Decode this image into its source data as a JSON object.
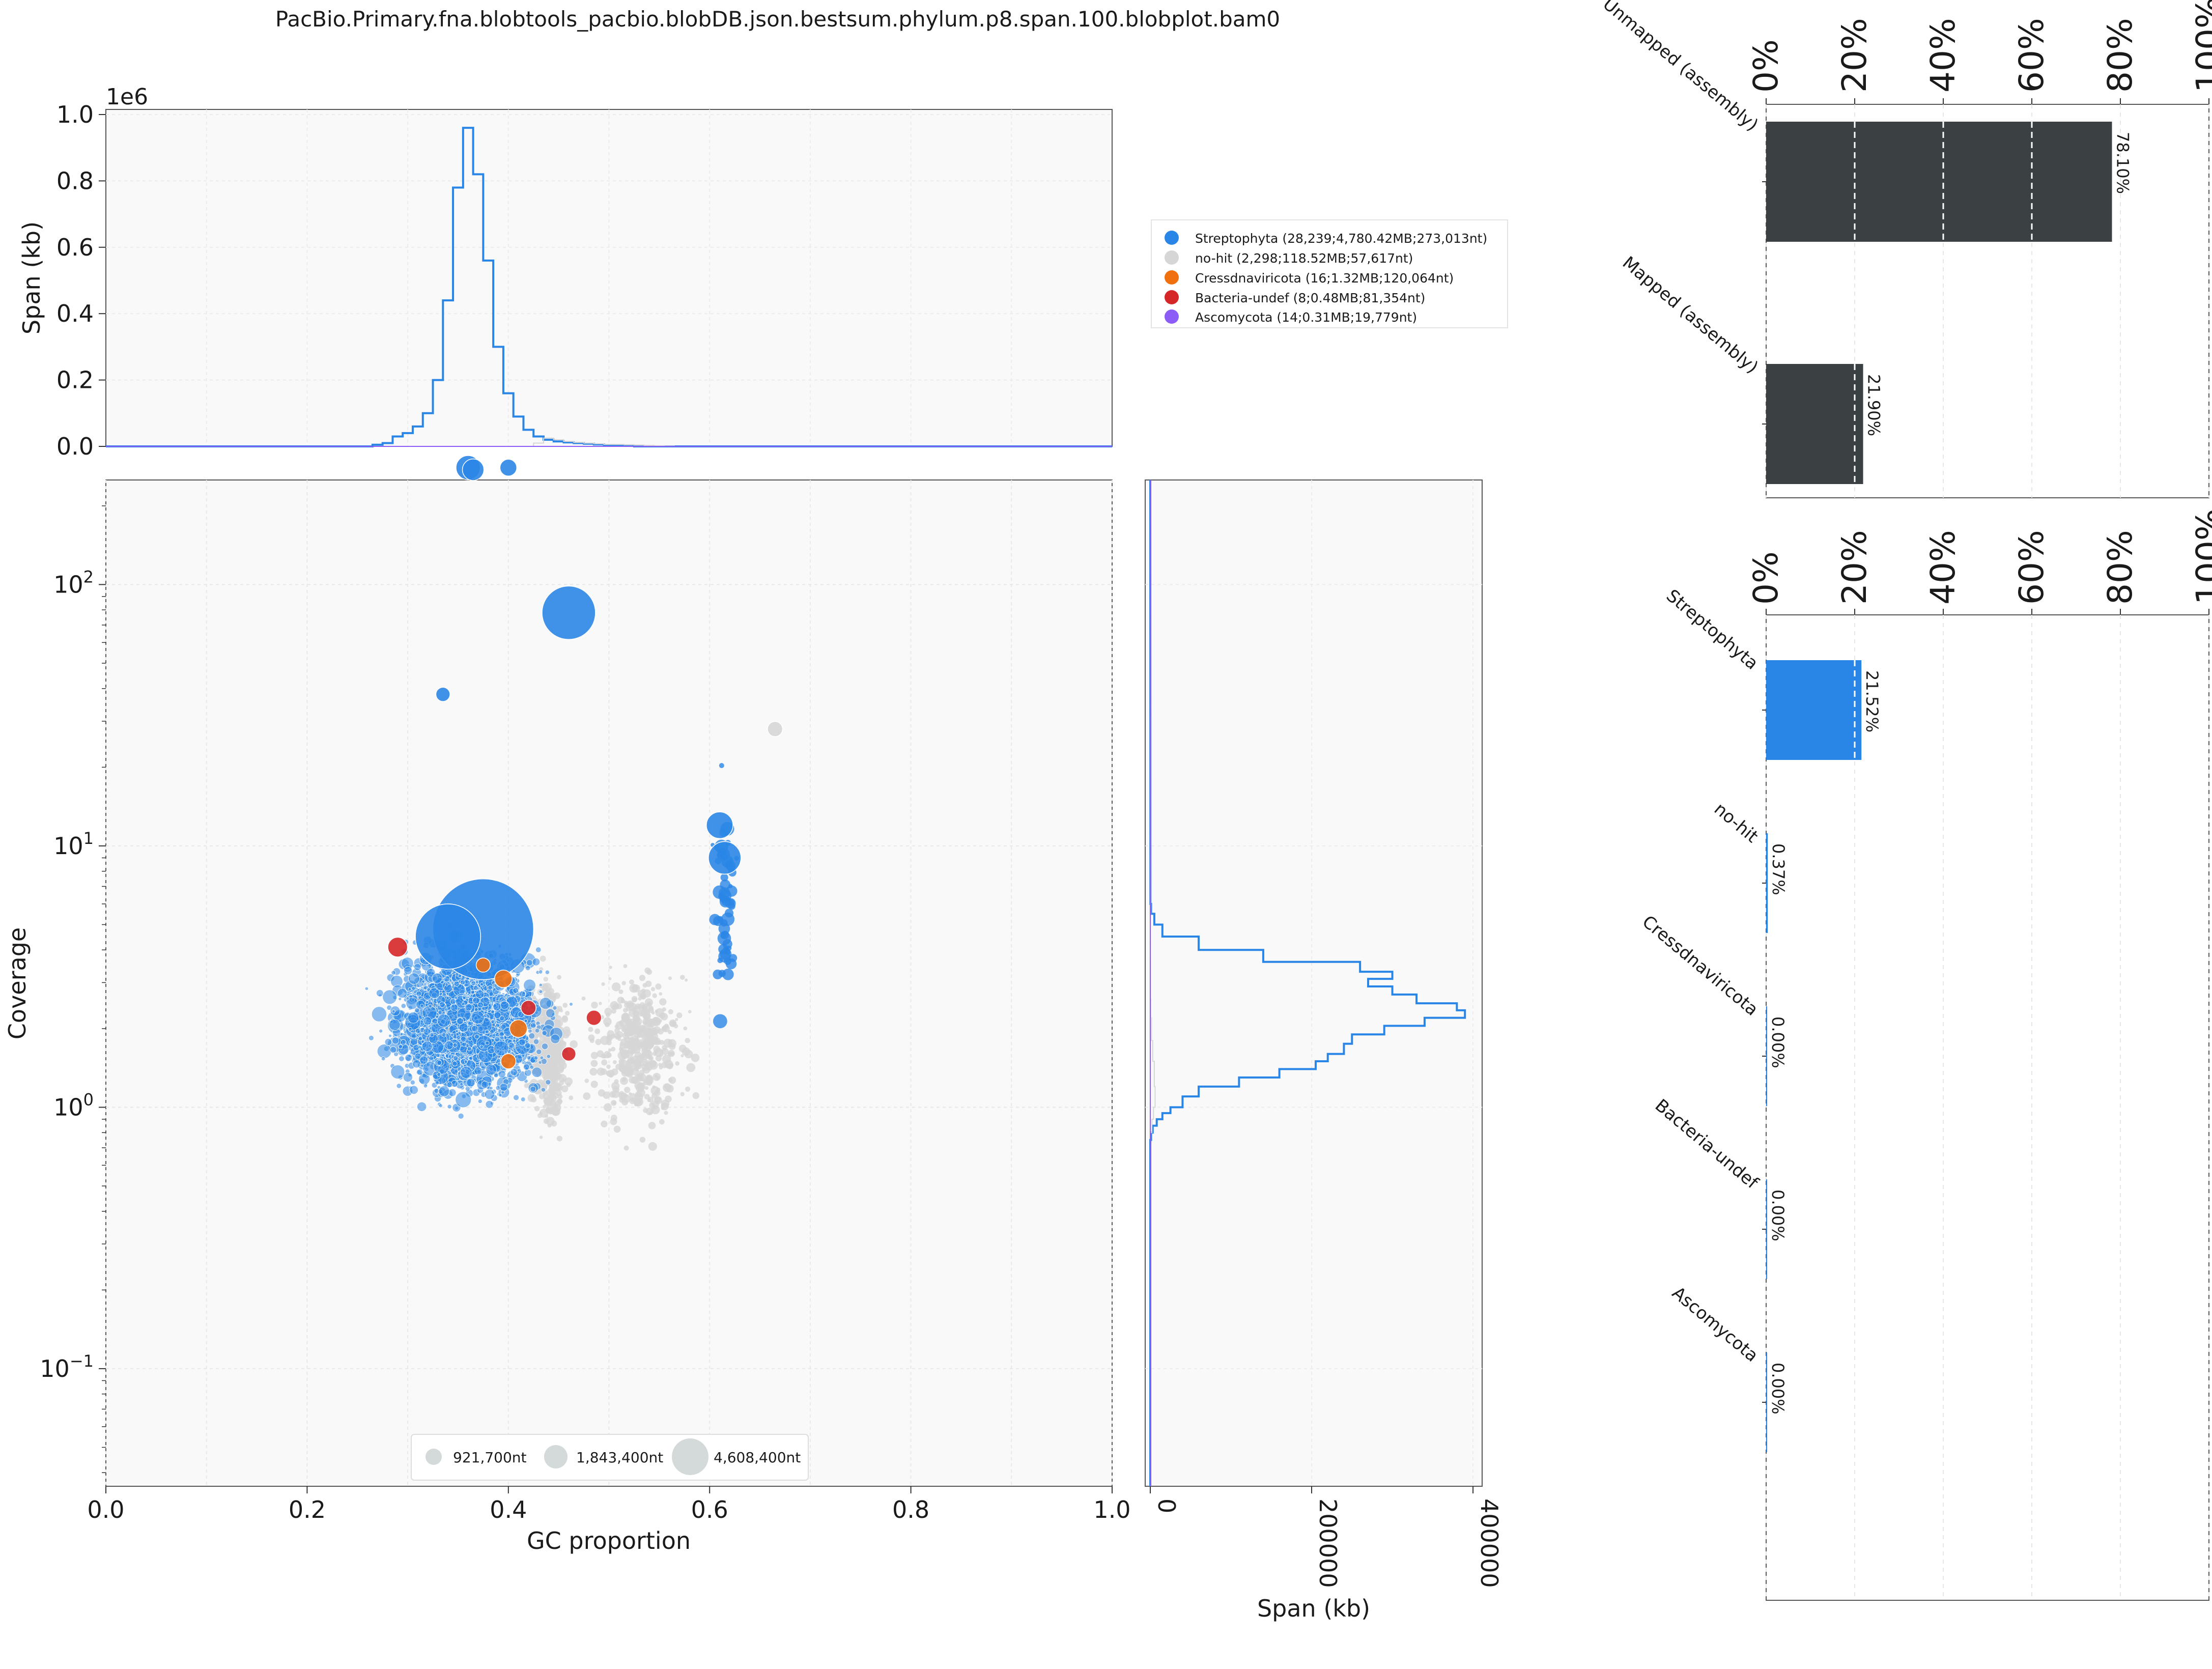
{
  "title": "PacBio.Primary.fna.blobtools_pacbio.blobDB.json.bestsum.phylum.p8.span.100.blobplot.bam0",
  "colors": {
    "Streptophyta": "#2a86e6",
    "no-hit": "#d6d6d6",
    "Cressdnaviricota": "#f07010",
    "Bacteria-undef": "#d62728",
    "Ascomycota": "#8b5cf6",
    "mapping_bar": "#3b4043"
  },
  "chart_data": [
    {
      "id": "top_histogram",
      "type": "line",
      "ylabel": "Span (kb)",
      "y_offset_label": "1e6",
      "xlim": [
        0,
        1
      ],
      "ylim": [
        0,
        1.0
      ],
      "yticks": [
        "0.0",
        "0.2",
        "0.4",
        "0.6",
        "0.8",
        "1.0"
      ],
      "series": [
        {
          "name": "Streptophyta",
          "x": [
            0.27,
            0.28,
            0.29,
            0.3,
            0.31,
            0.32,
            0.33,
            0.34,
            0.35,
            0.36,
            0.37,
            0.38,
            0.39,
            0.4,
            0.41,
            0.42,
            0.43,
            0.44,
            0.45,
            0.46,
            0.47,
            0.48,
            0.49,
            0.5,
            0.51,
            0.52
          ],
          "values": [
            0.005,
            0.01,
            0.03,
            0.04,
            0.06,
            0.1,
            0.2,
            0.44,
            0.78,
            0.96,
            0.82,
            0.56,
            0.3,
            0.16,
            0.09,
            0.05,
            0.03,
            0.02,
            0.015,
            0.012,
            0.01,
            0.008,
            0.006,
            0.004,
            0.003,
            0.002
          ]
        },
        {
          "name": "no-hit",
          "x": [
            0.43,
            0.44,
            0.45,
            0.46,
            0.47,
            0.48,
            0.49,
            0.5,
            0.51,
            0.52,
            0.53,
            0.54,
            0.55,
            0.56
          ],
          "values": [
            0.01,
            0.025,
            0.02,
            0.015,
            0.012,
            0.01,
            0.008,
            0.006,
            0.006,
            0.005,
            0.004,
            0.003,
            0.002,
            0.001
          ]
        }
      ]
    },
    {
      "id": "blob_scatter",
      "type": "scatter",
      "xlabel": "GC proportion",
      "ylabel": "Coverage",
      "xlim": [
        0.0,
        1.0
      ],
      "ylim_log10": [
        -1.45,
        2.4
      ],
      "xticks": [
        "0.0",
        "0.2",
        "0.4",
        "0.6",
        "0.8",
        "1.0"
      ],
      "yticks": [
        {
          "base": "10",
          "exp": "−1",
          "value": 0.1
        },
        {
          "base": "10",
          "exp": "0",
          "value": 1
        },
        {
          "base": "10",
          "exp": "1",
          "value": 10
        },
        {
          "base": "10",
          "exp": "2",
          "value": 100
        }
      ],
      "highlighted_points": [
        {
          "series": "Streptophyta",
          "x": 0.46,
          "y": 78,
          "span_nt": 1200000
        },
        {
          "series": "Streptophyta",
          "x": 0.36,
          "y": 280,
          "span_nt": 200000
        },
        {
          "series": "Streptophyta",
          "x": 0.365,
          "y": 275,
          "span_nt": 150000
        },
        {
          "series": "Streptophyta",
          "x": 0.4,
          "y": 280,
          "span_nt": 80000
        },
        {
          "series": "Streptophyta",
          "x": 0.335,
          "y": 38,
          "span_nt": 50000
        },
        {
          "series": "Streptophyta",
          "x": 0.375,
          "y": 4.8,
          "span_nt": 4608400
        },
        {
          "series": "Streptophyta",
          "x": 0.34,
          "y": 4.5,
          "span_nt": 1843400
        },
        {
          "series": "Streptophyta",
          "x": 0.615,
          "y": 9,
          "span_nt": 400000
        },
        {
          "series": "Streptophyta",
          "x": 0.61,
          "y": 12,
          "span_nt": 250000
        },
        {
          "series": "no-hit",
          "x": 0.665,
          "y": 28,
          "span_nt": 60000
        },
        {
          "series": "Cressdnaviricota",
          "x": 0.395,
          "y": 3.1,
          "span_nt": 90000
        },
        {
          "series": "Cressdnaviricota",
          "x": 0.41,
          "y": 2.0,
          "span_nt": 90000
        },
        {
          "series": "Cressdnaviricota",
          "x": 0.4,
          "y": 1.5,
          "span_nt": 60000
        },
        {
          "series": "Cressdnaviricota",
          "x": 0.375,
          "y": 3.5,
          "span_nt": 50000
        },
        {
          "series": "Bacteria-undef",
          "x": 0.29,
          "y": 4.1,
          "span_nt": 120000
        },
        {
          "series": "Bacteria-undef",
          "x": 0.42,
          "y": 2.4,
          "span_nt": 60000
        },
        {
          "series": "Bacteria-undef",
          "x": 0.485,
          "y": 2.2,
          "span_nt": 60000
        },
        {
          "series": "Bacteria-undef",
          "x": 0.46,
          "y": 1.6,
          "span_nt": 50000
        }
      ],
      "legend": [
        {
          "series": "Streptophyta",
          "label": "Streptophyta (28,239;4,780.42MB;273,013nt)"
        },
        {
          "series": "no-hit",
          "label": "no-hit (2,298;118.52MB;57,617nt)"
        },
        {
          "series": "Cressdnaviricota",
          "label": "Cressdnaviricota (16;1.32MB;120,064nt)"
        },
        {
          "series": "Bacteria-undef",
          "label": "Bacteria-undef (8;0.48MB;81,354nt)"
        },
        {
          "series": "Ascomycota",
          "label": "Ascomycota (14;0.31MB;19,779nt)"
        }
      ],
      "size_legend": [
        {
          "label": "921,700nt",
          "span_nt": 921700
        },
        {
          "label": "1,843,400nt",
          "span_nt": 1843400
        },
        {
          "label": "4,608,400nt",
          "span_nt": 4608400
        }
      ]
    },
    {
      "id": "right_histogram",
      "type": "line",
      "xlabel": "Span (kb)",
      "xlim": [
        0,
        400000
      ],
      "xticks": [
        "0",
        "200000",
        "400000"
      ],
      "orientation": "horizontal",
      "series": [
        {
          "name": "Streptophyta",
          "y": [
            0.75,
            0.8,
            0.85,
            0.9,
            0.95,
            1.0,
            1.1,
            1.2,
            1.3,
            1.4,
            1.5,
            1.6,
            1.75,
            1.9,
            2.05,
            2.2,
            2.35,
            2.5,
            2.7,
            2.9,
            3.1,
            3.3,
            3.6,
            4.0,
            4.5,
            5.0,
            5.5,
            6.0
          ],
          "values": [
            1000,
            3000,
            8000,
            15000,
            25000,
            40000,
            60000,
            110000,
            160000,
            205000,
            220000,
            240000,
            250000,
            290000,
            340000,
            390000,
            380000,
            330000,
            300000,
            270000,
            300000,
            260000,
            140000,
            60000,
            15000,
            5000,
            1000,
            200
          ]
        },
        {
          "name": "no-hit",
          "y": [
            0.8,
            0.9,
            1.0,
            1.2,
            1.5,
            1.8,
            2.2,
            2.6
          ],
          "values": [
            2000,
            4000,
            6000,
            5000,
            3000,
            1500,
            600,
            200
          ]
        }
      ]
    },
    {
      "id": "mapping_bars",
      "type": "bar",
      "orientation": "horizontal",
      "categories": [
        "Unmapped (assembly)",
        "Mapped (assembly)"
      ],
      "values": [
        78.1,
        21.9
      ],
      "value_labels": [
        "78.10%",
        "21.90%"
      ],
      "xlim": [
        0,
        100
      ],
      "xticks": [
        "0%",
        "20%",
        "40%",
        "60%",
        "80%",
        "100%"
      ]
    },
    {
      "id": "taxon_bars",
      "type": "bar",
      "orientation": "horizontal",
      "categories": [
        "Streptophyta",
        "no-hit",
        "Cressdnaviricota",
        "Bacteria-undef",
        "Ascomycota"
      ],
      "values": [
        21.52,
        0.37,
        0.0,
        0.0,
        0.0
      ],
      "value_labels": [
        "21.52%",
        "0.37%",
        "0.00%",
        "0.00%",
        "0.00%"
      ],
      "xlim": [
        0,
        100
      ],
      "xticks": [
        "0%",
        "20%",
        "40%",
        "60%",
        "80%",
        "100%"
      ]
    }
  ]
}
